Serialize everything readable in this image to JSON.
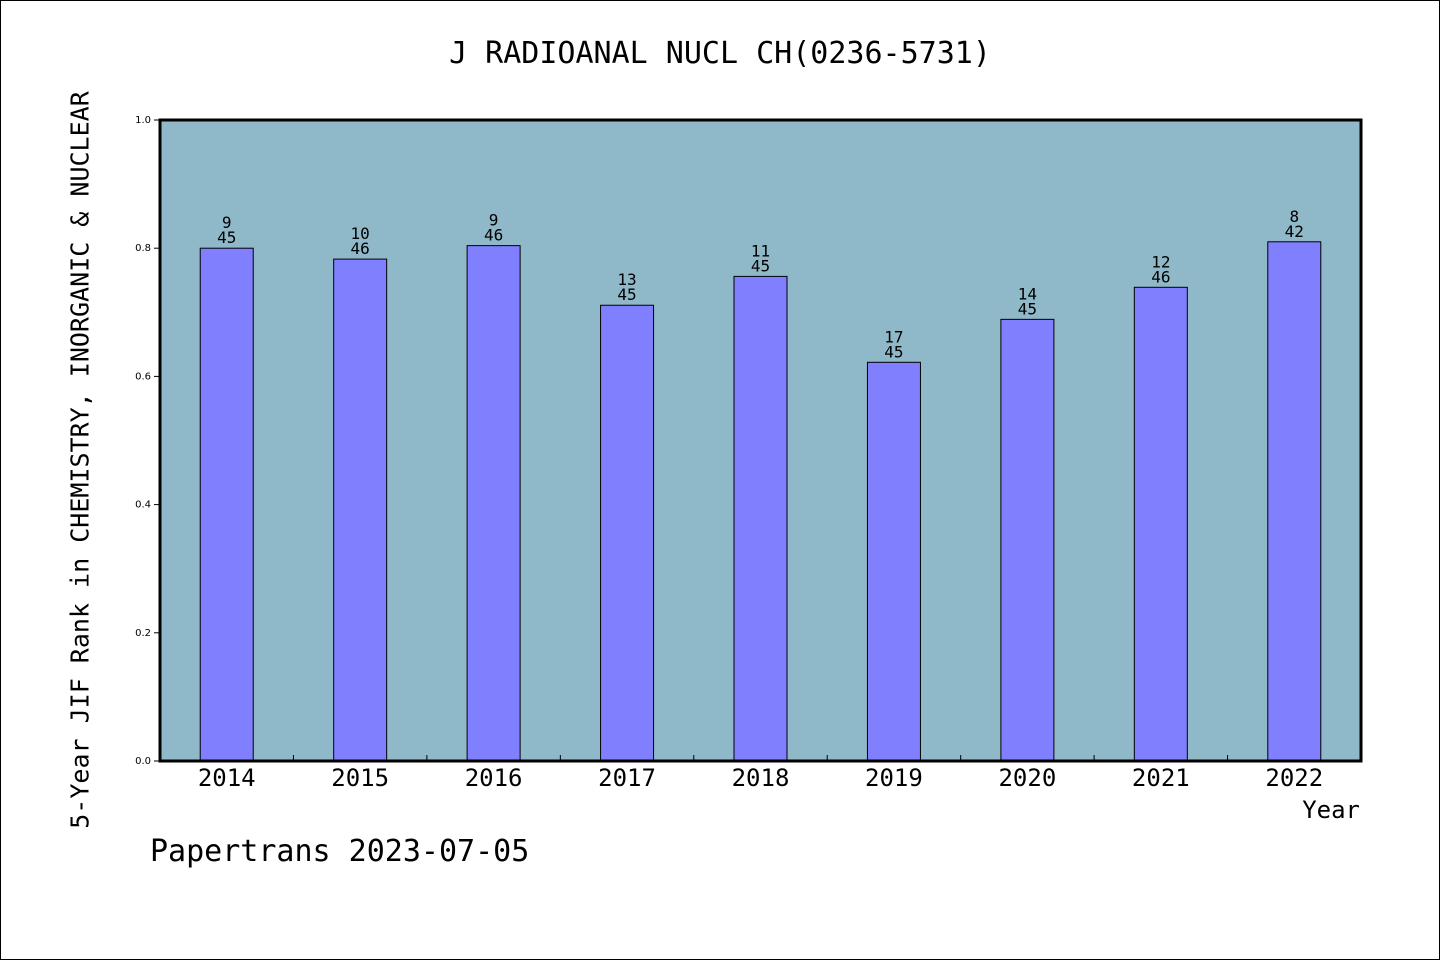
{
  "chart_data": {
    "type": "bar",
    "title": "J RADIOANAL NUCL CH(0236-5731)",
    "xlabel": "Year",
    "ylabel": "5-Year JIF Rank in CHEMISTRY, INORGANIC & NUCLEAR",
    "categories": [
      "2014",
      "2015",
      "2016",
      "2017",
      "2018",
      "2019",
      "2020",
      "2021",
      "2022"
    ],
    "values": [
      0.8,
      0.783,
      0.804,
      0.711,
      0.756,
      0.622,
      0.689,
      0.739,
      0.81
    ],
    "ranks": [
      "9",
      "10",
      "9",
      "13",
      "11",
      "17",
      "14",
      "12",
      "8"
    ],
    "totals": [
      "45",
      "46",
      "46",
      "45",
      "45",
      "45",
      "45",
      "46",
      "42"
    ],
    "ylim": [
      0,
      1.0
    ],
    "yticks": [
      "0.0",
      "0.2",
      "0.4",
      "0.6",
      "0.8",
      "1.0"
    ],
    "grid": false,
    "legend": "none",
    "colors": {
      "plot_background": "#8fb8c8",
      "bar_fill": "#8080ff",
      "bar_stroke": "#000000",
      "axis": "#000000"
    }
  },
  "footer": "Papertrans 2023-07-05"
}
